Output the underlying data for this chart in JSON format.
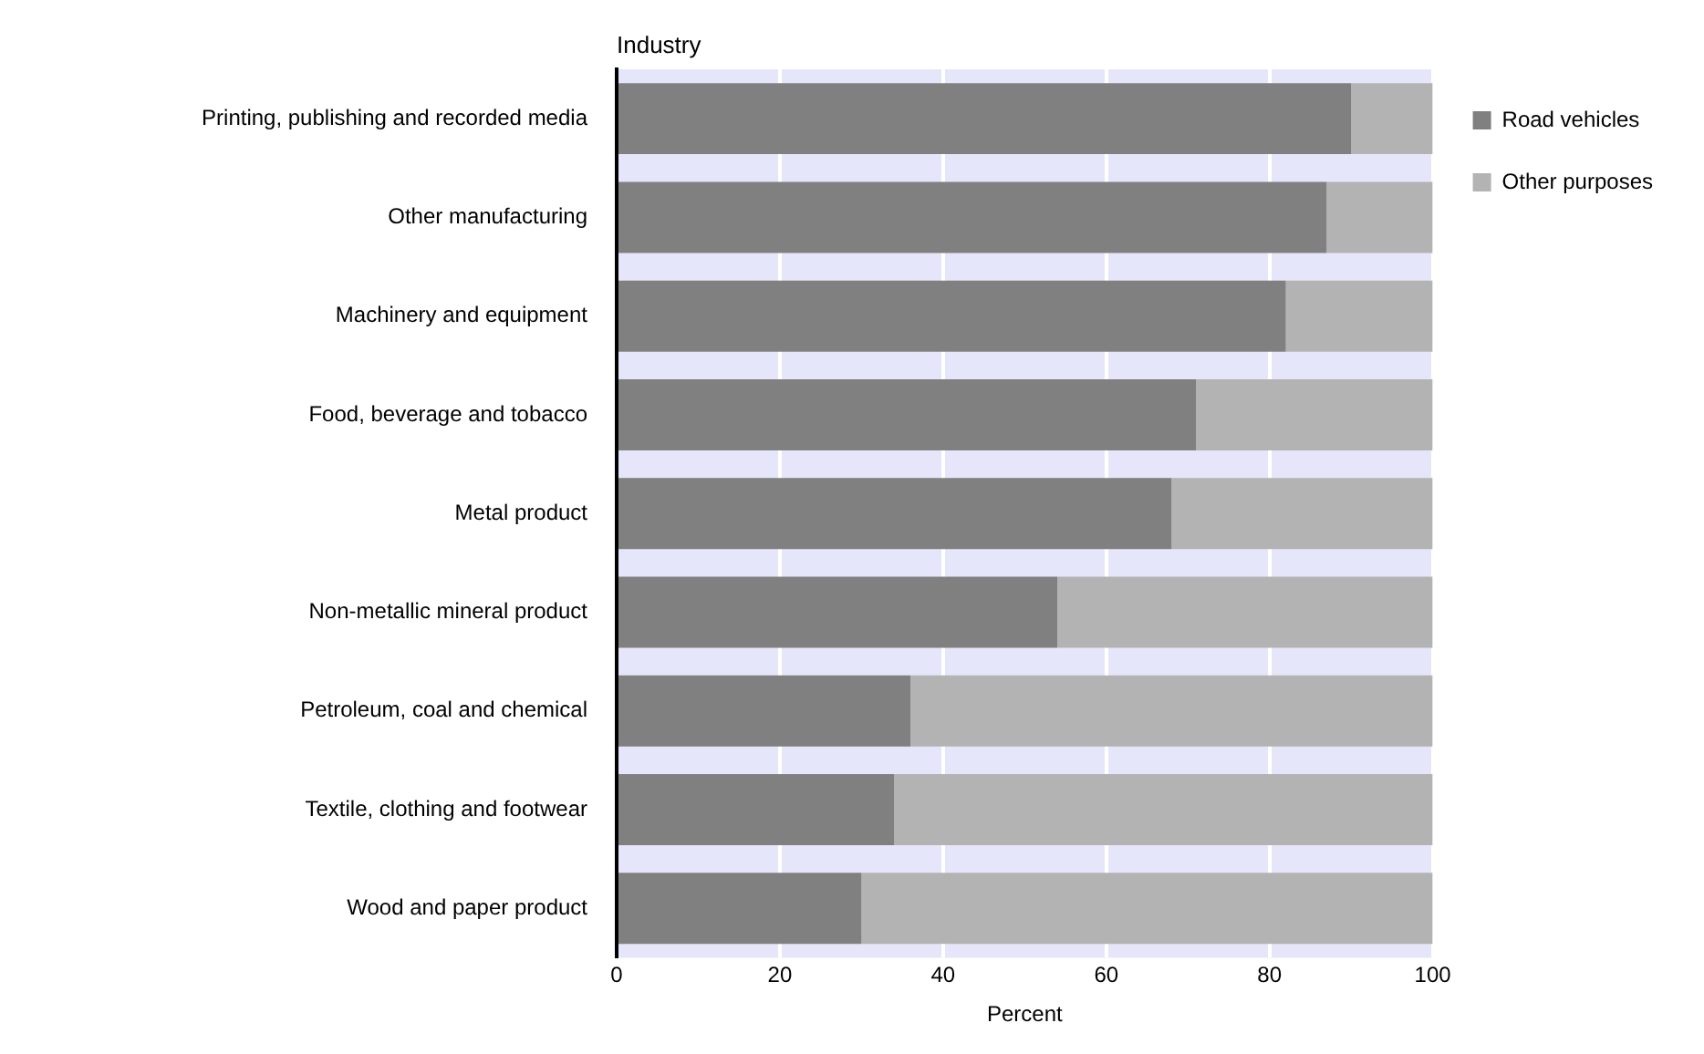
{
  "chart_data": {
    "type": "bar",
    "orientation": "horizontal",
    "stacked": true,
    "ylabel": "Industry",
    "xlabel": "Percent",
    "categories": [
      "Printing, publishing and recorded media",
      "Other manufacturing",
      "Machinery and equipment",
      "Food, beverage and tobacco",
      "Metal product",
      "Non-metallic mineral product",
      "Petroleum, coal and chemical",
      "Textile, clothing and footwear",
      "Wood and paper product"
    ],
    "series": [
      {
        "name": "Road vehicles",
        "color": "#808080",
        "values": [
          90,
          87,
          82,
          71,
          68,
          54,
          36,
          34,
          30
        ]
      },
      {
        "name": "Other purposes",
        "color": "#b3b3b3",
        "values": [
          10,
          13,
          18,
          29,
          32,
          46,
          64,
          66,
          70
        ]
      }
    ],
    "xlim": [
      0,
      100
    ],
    "xticks": [
      0,
      20,
      40,
      60,
      80,
      100
    ],
    "grid": "x",
    "legend": "top right"
  }
}
